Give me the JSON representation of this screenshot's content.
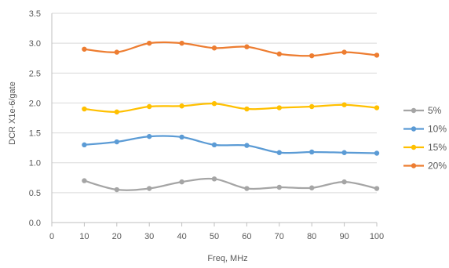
{
  "chart_data": {
    "type": "line",
    "title": "",
    "xlabel": "Freq, MHz",
    "ylabel": "DCR X1e-6/gate",
    "xlim": [
      0,
      100
    ],
    "ylim": [
      0,
      3.5
    ],
    "x_ticks": [
      "0",
      "10",
      "20",
      "30",
      "40",
      "50",
      "60",
      "70",
      "80",
      "90",
      "100"
    ],
    "y_ticks": [
      "0.0",
      "0.5",
      "1.0",
      "1.5",
      "2.0",
      "2.5",
      "3.0",
      "3.5"
    ],
    "x": [
      10,
      20,
      30,
      40,
      50,
      60,
      70,
      80,
      90,
      100
    ],
    "grid": "horizontal",
    "smooth": true,
    "legend_position": "right",
    "series": [
      {
        "name": "5%",
        "color": "#a5a5a5",
        "values": [
          0.7,
          0.55,
          0.57,
          0.68,
          0.73,
          0.57,
          0.59,
          0.58,
          0.68,
          0.57
        ]
      },
      {
        "name": "10%",
        "color": "#5b9bd5",
        "values": [
          1.3,
          1.35,
          1.44,
          1.43,
          1.3,
          1.29,
          1.17,
          1.18,
          1.17,
          1.16
        ]
      },
      {
        "name": "15%",
        "color": "#ffc000",
        "values": [
          1.9,
          1.85,
          1.94,
          1.95,
          1.99,
          1.9,
          1.92,
          1.94,
          1.97,
          1.92
        ]
      },
      {
        "name": "20%",
        "color": "#ed7d31",
        "values": [
          2.9,
          2.85,
          3.0,
          3.0,
          2.92,
          2.94,
          2.82,
          2.79,
          2.85,
          2.8
        ]
      }
    ]
  }
}
